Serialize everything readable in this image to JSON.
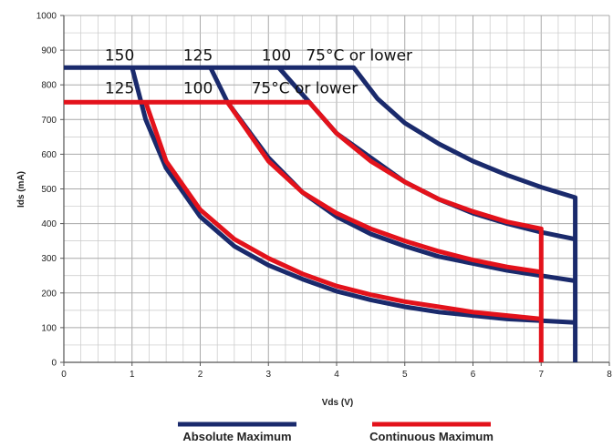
{
  "chart_data": {
    "type": "line",
    "title": "",
    "xlabel": "Vds (V)",
    "ylabel": "Ids (mA)",
    "xlim": [
      0,
      8
    ],
    "ylim": [
      0,
      1000
    ],
    "x_ticks": [
      "0",
      "1",
      "2",
      "3",
      "4",
      "5",
      "6",
      "7",
      "8"
    ],
    "y_ticks": [
      "0",
      "100",
      "200",
      "300",
      "400",
      "500",
      "600",
      "700",
      "800",
      "900",
      "1000"
    ],
    "grid": true,
    "legend_position": "bottom",
    "colors": {
      "absolute": "#1a2a6c",
      "continuous": "#e3121b",
      "grid": "#c8c8c8"
    },
    "legend": [
      {
        "label": "Absolute Maximum",
        "series_group": "absolute"
      },
      {
        "label": "Continuous Maximum",
        "series_group": "continuous"
      }
    ],
    "series": [
      {
        "group": "absolute",
        "x": [
          1.0,
          1.2,
          1.5,
          2.0,
          2.5,
          3.0,
          3.5,
          4.0,
          4.5,
          5.0,
          5.5,
          6.0,
          6.5,
          7.0,
          7.5
        ],
        "y": [
          850,
          700,
          560,
          420,
          335,
          280,
          240,
          205,
          180,
          160,
          145,
          135,
          125,
          120,
          115
        ]
      },
      {
        "group": "absolute",
        "x": [
          2.15,
          2.4,
          3.0,
          3.5,
          4.0,
          4.5,
          5.0,
          5.5,
          6.0,
          6.5,
          7.0,
          7.5
        ],
        "y": [
          850,
          750,
          590,
          490,
          420,
          370,
          335,
          305,
          285,
          265,
          250,
          235
        ]
      },
      {
        "group": "absolute",
        "x": [
          3.15,
          3.6,
          4.0,
          4.5,
          5.0,
          5.5,
          6.0,
          6.5,
          7.0,
          7.5
        ],
        "y": [
          850,
          750,
          660,
          590,
          520,
          470,
          430,
          400,
          375,
          355
        ]
      },
      {
        "group": "absolute",
        "x": [
          0,
          4.25,
          4.6,
          5.0,
          5.5,
          6.0,
          6.5,
          7.0,
          7.5,
          7.5
        ],
        "y": [
          850,
          850,
          760,
          690,
          630,
          580,
          540,
          505,
          475,
          0
        ]
      },
      {
        "group": "continuous",
        "x": [
          1.2,
          1.5,
          2.0,
          2.5,
          3.0,
          3.5,
          4.0,
          4.5,
          5.0,
          5.5,
          6.0,
          6.5,
          7.0
        ],
        "y": [
          750,
          580,
          440,
          355,
          300,
          255,
          220,
          195,
          175,
          160,
          145,
          135,
          125
        ]
      },
      {
        "group": "continuous",
        "x": [
          2.4,
          3.0,
          3.5,
          4.0,
          4.5,
          5.0,
          5.5,
          6.0,
          6.5,
          7.0
        ],
        "y": [
          750,
          580,
          490,
          430,
          385,
          350,
          320,
          295,
          275,
          260
        ]
      },
      {
        "group": "continuous",
        "x": [
          0,
          3.6,
          4.0,
          4.5,
          5.0,
          5.5,
          6.0,
          6.5,
          7.0,
          7.0
        ],
        "y": [
          750,
          750,
          660,
          580,
          520,
          470,
          435,
          405,
          385,
          0
        ]
      }
    ],
    "annotations": [
      {
        "text": "150",
        "x": 0.6,
        "y": 870
      },
      {
        "text": "125",
        "x": 1.75,
        "y": 870
      },
      {
        "text": "100",
        "x": 2.9,
        "y": 870
      },
      {
        "text": "75°C or lower",
        "x": 3.55,
        "y": 870
      },
      {
        "text": "125",
        "x": 0.6,
        "y": 775
      },
      {
        "text": "100",
        "x": 1.75,
        "y": 775
      },
      {
        "text": "75°C or lower",
        "x": 2.75,
        "y": 775
      }
    ]
  }
}
